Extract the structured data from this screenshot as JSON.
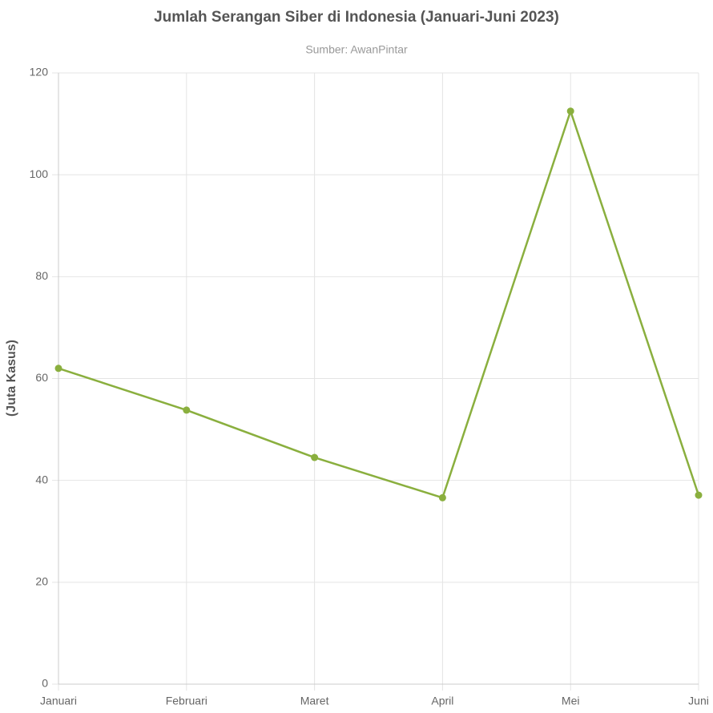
{
  "chart_data": {
    "type": "line",
    "title": "Jumlah Serangan Siber di Indonesia (Januari-Juni 2023)",
    "subtitle": "Sumber: AwanPintar",
    "y_label": "(Juta Kasus)",
    "categories": [
      "Januari",
      "Februari",
      "Maret",
      "April",
      "Mei",
      "Juni"
    ],
    "series": [
      {
        "name": "Jumlah Serangan",
        "color": "#8aaf3e",
        "values": [
          62,
          53.8,
          44.5,
          36.6,
          112.5,
          37.1
        ]
      }
    ],
    "ylim": [
      0,
      120
    ],
    "yticks": [
      0,
      20,
      40,
      60,
      80,
      100,
      120
    ],
    "grid": true
  }
}
